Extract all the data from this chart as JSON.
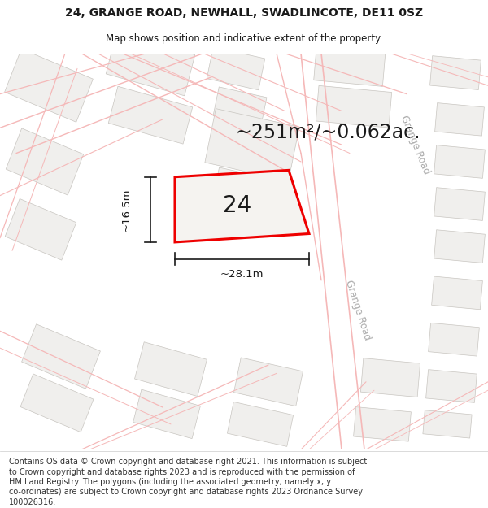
{
  "title_line1": "24, GRANGE ROAD, NEWHALL, SWADLINCOTE, DE11 0SZ",
  "title_line2": "Map shows position and indicative extent of the property.",
  "area_text": "~251m²/~0.062ac.",
  "number_label": "24",
  "dim_width": "~28.1m",
  "dim_height": "~16.5m",
  "footer_lines": [
    "Contains OS data © Crown copyright and database right 2021. This information is subject",
    "to Crown copyright and database rights 2023 and is reproduced with the permission of",
    "HM Land Registry. The polygons (including the associated geometry, namely x, y",
    "co-ordinates) are subject to Crown copyright and database rights 2023 Ordnance Survey",
    "100026316."
  ],
  "map_bg": "#ffffff",
  "building_face": "#f0efed",
  "building_edge": "#c8c5c0",
  "road_pink": "#f5b8b8",
  "road_edge": "#e8a0a0",
  "plot_outline_color": "#ee0000",
  "plot_fill_color": "#f5f3f0",
  "dim_line_color": "#1a1a1a",
  "text_color": "#1a1a1a",
  "road_label_color": "#aaaaaa",
  "title_fontsize": 10,
  "subtitle_fontsize": 8.5,
  "area_fontsize": 17,
  "number_fontsize": 20,
  "dim_fontsize": 9.5,
  "footer_fontsize": 7.0,
  "road_label_fontsize": 8.5
}
